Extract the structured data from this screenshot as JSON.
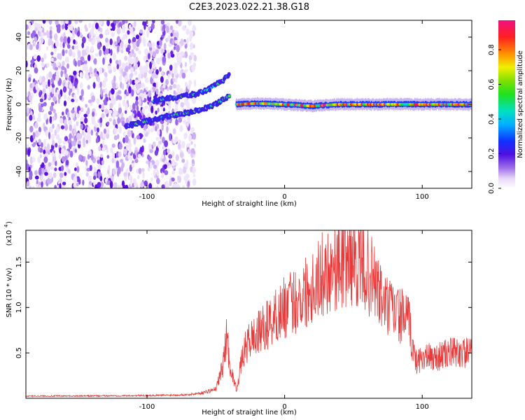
{
  "page_title": "C2E3.2023.022.21.38.G18",
  "colors": {
    "signal": "#e83a3a",
    "spectrogram_low": "#a070e8",
    "spectrogram_mid": "#2040ff",
    "spectrogram_high": "#ff2060"
  },
  "chart_data": [
    {
      "type": "heatmap",
      "title": "C2E3.2023.022.21.38.G18",
      "xlabel": "Height of straight line (km)",
      "ylabel": "Frequency (Hz)",
      "xlim": [
        -188,
        136
      ],
      "ylim": [
        -50,
        50
      ],
      "xticks": [
        -100,
        0,
        100
      ],
      "yticks": [
        -40,
        -20,
        0,
        20,
        40
      ],
      "description_series": [
        {
          "name": "noise_field",
          "x_range": [
            -188,
            -65
          ],
          "y_range": [
            -50,
            50
          ],
          "amplitude": 0.15
        },
        {
          "name": "lower_branch",
          "x": [
            -115,
            -100,
            -85,
            -70,
            -60,
            -50,
            -40
          ],
          "y": [
            -13,
            -10,
            -7,
            -5,
            -3,
            0,
            5
          ],
          "amplitude": 0.3
        },
        {
          "name": "upper_branch",
          "x": [
            -95,
            -80,
            -65,
            -55,
            -45,
            -40
          ],
          "y": [
            2,
            4,
            6,
            9,
            14,
            18
          ],
          "amplitude": 0.3
        },
        {
          "name": "carrier",
          "x": [
            -35,
            -20,
            0,
            20,
            40,
            60,
            80,
            100,
            120,
            136
          ],
          "y": [
            0,
            0.5,
            0,
            -1,
            0,
            0,
            0,
            0,
            0,
            0
          ],
          "amplitude": 0.95
        }
      ],
      "colorbar": {
        "label": "Normalized spectral amplitude",
        "range": [
          0,
          0.97
        ],
        "ticks": [
          "0.0",
          "0.2",
          "0.4",
          "0.6",
          "0.8"
        ]
      }
    },
    {
      "type": "line",
      "xlabel": "Height of straight line (km)",
      "ylabel": "SNR (10 * v/v)",
      "exponent_label": "(x10",
      "exponent_power": "4",
      "xlim": [
        -188,
        136
      ],
      "ylim": [
        0,
        18500
      ],
      "xticks": [
        -100,
        0,
        100
      ],
      "yticks": [
        "0.5",
        "1.0",
        "1.5"
      ],
      "ytick_values": [
        5000,
        10000,
        15000
      ],
      "x": [
        -188,
        -150,
        -100,
        -70,
        -60,
        -50,
        -45,
        -42,
        -40,
        -38,
        -35,
        -30,
        -25,
        -20,
        -10,
        0,
        10,
        20,
        30,
        40,
        50,
        60,
        65,
        70,
        75,
        80,
        90,
        95,
        100,
        110,
        120,
        136
      ],
      "y": [
        250,
        250,
        300,
        400,
        600,
        1000,
        3500,
        7000,
        4000,
        2500,
        1000,
        5000,
        6500,
        7000,
        8500,
        10000,
        11000,
        12500,
        14000,
        15000,
        15500,
        14000,
        13000,
        11000,
        10000,
        9500,
        8500,
        4000,
        4500,
        4500,
        5000,
        5000
      ]
    }
  ],
  "xaxis_label": "Height of straight line (km)",
  "yaxis_label_top": "Frequency (Hz)",
  "yaxis_label_bottom": "SNR (10 * v/v)"
}
